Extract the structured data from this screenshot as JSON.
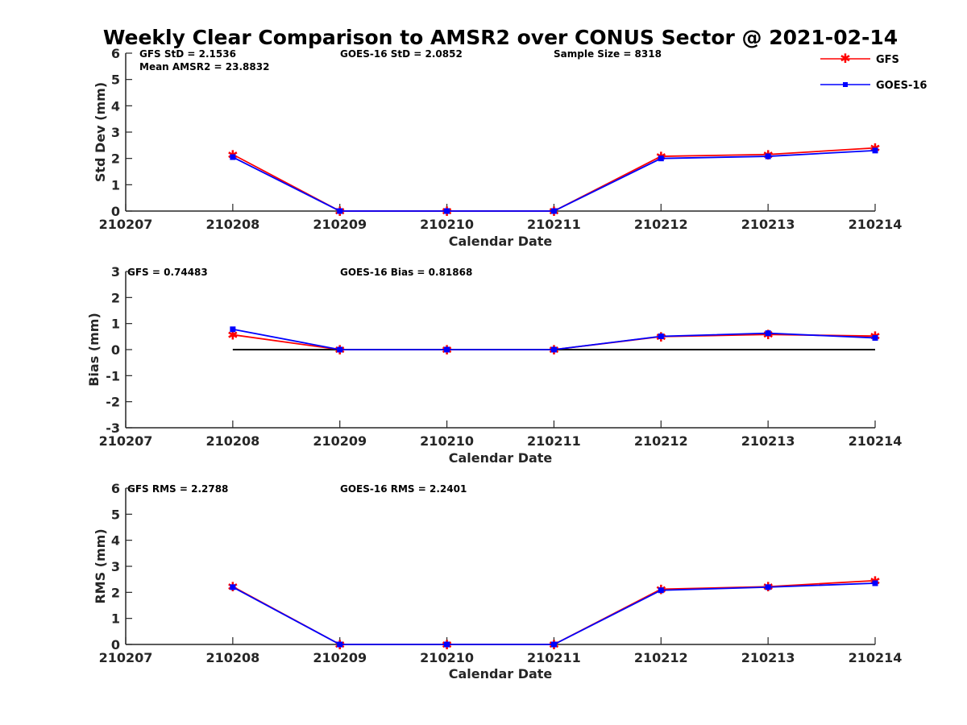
{
  "chart_data": {
    "type": "line",
    "title": "Weekly Clear Comparison to AMSR2 over CONUS Sector @ 2021-02-14",
    "legend": {
      "placement": "top-right",
      "entries": [
        {
          "name": "GFS",
          "color": "#ff0000",
          "marker": "asterisk"
        },
        {
          "name": "GOES-16",
          "color": "#0000ff",
          "marker": "square"
        }
      ]
    },
    "x_ticks": [
      "210207",
      "210208",
      "210209",
      "210210",
      "210211",
      "210212",
      "210213",
      "210214"
    ],
    "panels": [
      {
        "ylabel": "Std Dev (mm)",
        "xlabel": "Calendar Date",
        "ylim": [
          0,
          6
        ],
        "yticks": [
          0,
          1,
          2,
          3,
          4,
          5,
          6
        ],
        "annotations": [
          "GFS StD = 2.1536",
          "GOES-16 StD = 2.0852",
          "Sample Size = 8318",
          "Mean AMSR2 = 23.8832"
        ],
        "x": [
          "210208",
          "210209",
          "210210",
          "210211",
          "210212",
          "210213",
          "210214"
        ],
        "series": [
          {
            "name": "GFS",
            "color": "#ff0000",
            "values": [
              2.15,
              0.0,
              0.0,
              0.0,
              2.08,
              2.15,
              2.4
            ]
          },
          {
            "name": "GOES-16",
            "color": "#0000ff",
            "values": [
              2.05,
              0.0,
              0.0,
              0.0,
              2.0,
              2.08,
              2.3
            ]
          }
        ]
      },
      {
        "ylabel": "Bias (mm)",
        "xlabel": "Calendar Date",
        "ylim": [
          -3,
          3
        ],
        "yticks": [
          -3,
          -2,
          -1,
          0,
          1,
          2,
          3
        ],
        "annotations": [
          "GFS = 0.74483",
          "GOES-16 Bias  = 0.81868"
        ],
        "zero_line": true,
        "x": [
          "210208",
          "210209",
          "210210",
          "210211",
          "210212",
          "210213",
          "210214"
        ],
        "series": [
          {
            "name": "GFS",
            "color": "#ff0000",
            "values": [
              0.57,
              0.0,
              0.0,
              0.0,
              0.5,
              0.58,
              0.52
            ]
          },
          {
            "name": "GOES-16",
            "color": "#0000ff",
            "values": [
              0.78,
              0.0,
              0.0,
              0.0,
              0.51,
              0.63,
              0.45
            ]
          }
        ]
      },
      {
        "ylabel": "RMS (mm)",
        "xlabel": "Calendar Date",
        "ylim": [
          0,
          6
        ],
        "yticks": [
          0,
          1,
          2,
          3,
          4,
          5,
          6
        ],
        "annotations": [
          "GFS RMS = 2.2788",
          "GOES-16 RMS = 2.2401"
        ],
        "x": [
          "210208",
          "210209",
          "210210",
          "210211",
          "210212",
          "210213",
          "210214"
        ],
        "series": [
          {
            "name": "GFS",
            "color": "#ff0000",
            "values": [
              2.22,
              0.0,
              0.0,
              0.0,
              2.12,
              2.22,
              2.45
            ]
          },
          {
            "name": "GOES-16",
            "color": "#0000ff",
            "values": [
              2.2,
              0.0,
              0.0,
              0.0,
              2.08,
              2.2,
              2.35
            ]
          }
        ]
      }
    ]
  }
}
